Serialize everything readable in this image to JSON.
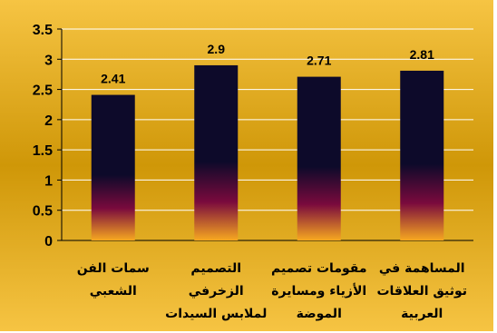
{
  "chart_data": {
    "type": "bar",
    "categories": [
      [
        "سمات الفن",
        "الشعبي"
      ],
      [
        "التصميم",
        "الزخرفي",
        "لملابس السيدات"
      ],
      [
        "مقومات تصميم",
        "الأزياء ومسايرة",
        "الموضة"
      ],
      [
        "المساهمة في",
        "توثيق العلاقات",
        "العربية"
      ]
    ],
    "values": [
      2.41,
      2.9,
      2.71,
      2.81
    ],
    "value_labels": [
      "2.41",
      "2.9",
      "2.71",
      "2.81"
    ],
    "y_ticks": [
      "0",
      "0.5",
      "1",
      "1.5",
      "2",
      "2.5",
      "3",
      "3.5"
    ],
    "ylim": [
      0,
      3.5
    ],
    "grid": true,
    "colors": {
      "background_light": "#f6c443",
      "background_dark": "#cf9708",
      "bar_top": "#0d0a2a",
      "bar_mid": "#7a0a3d",
      "bar_bottom": "#f7a820",
      "grid": "#ffffff"
    }
  }
}
